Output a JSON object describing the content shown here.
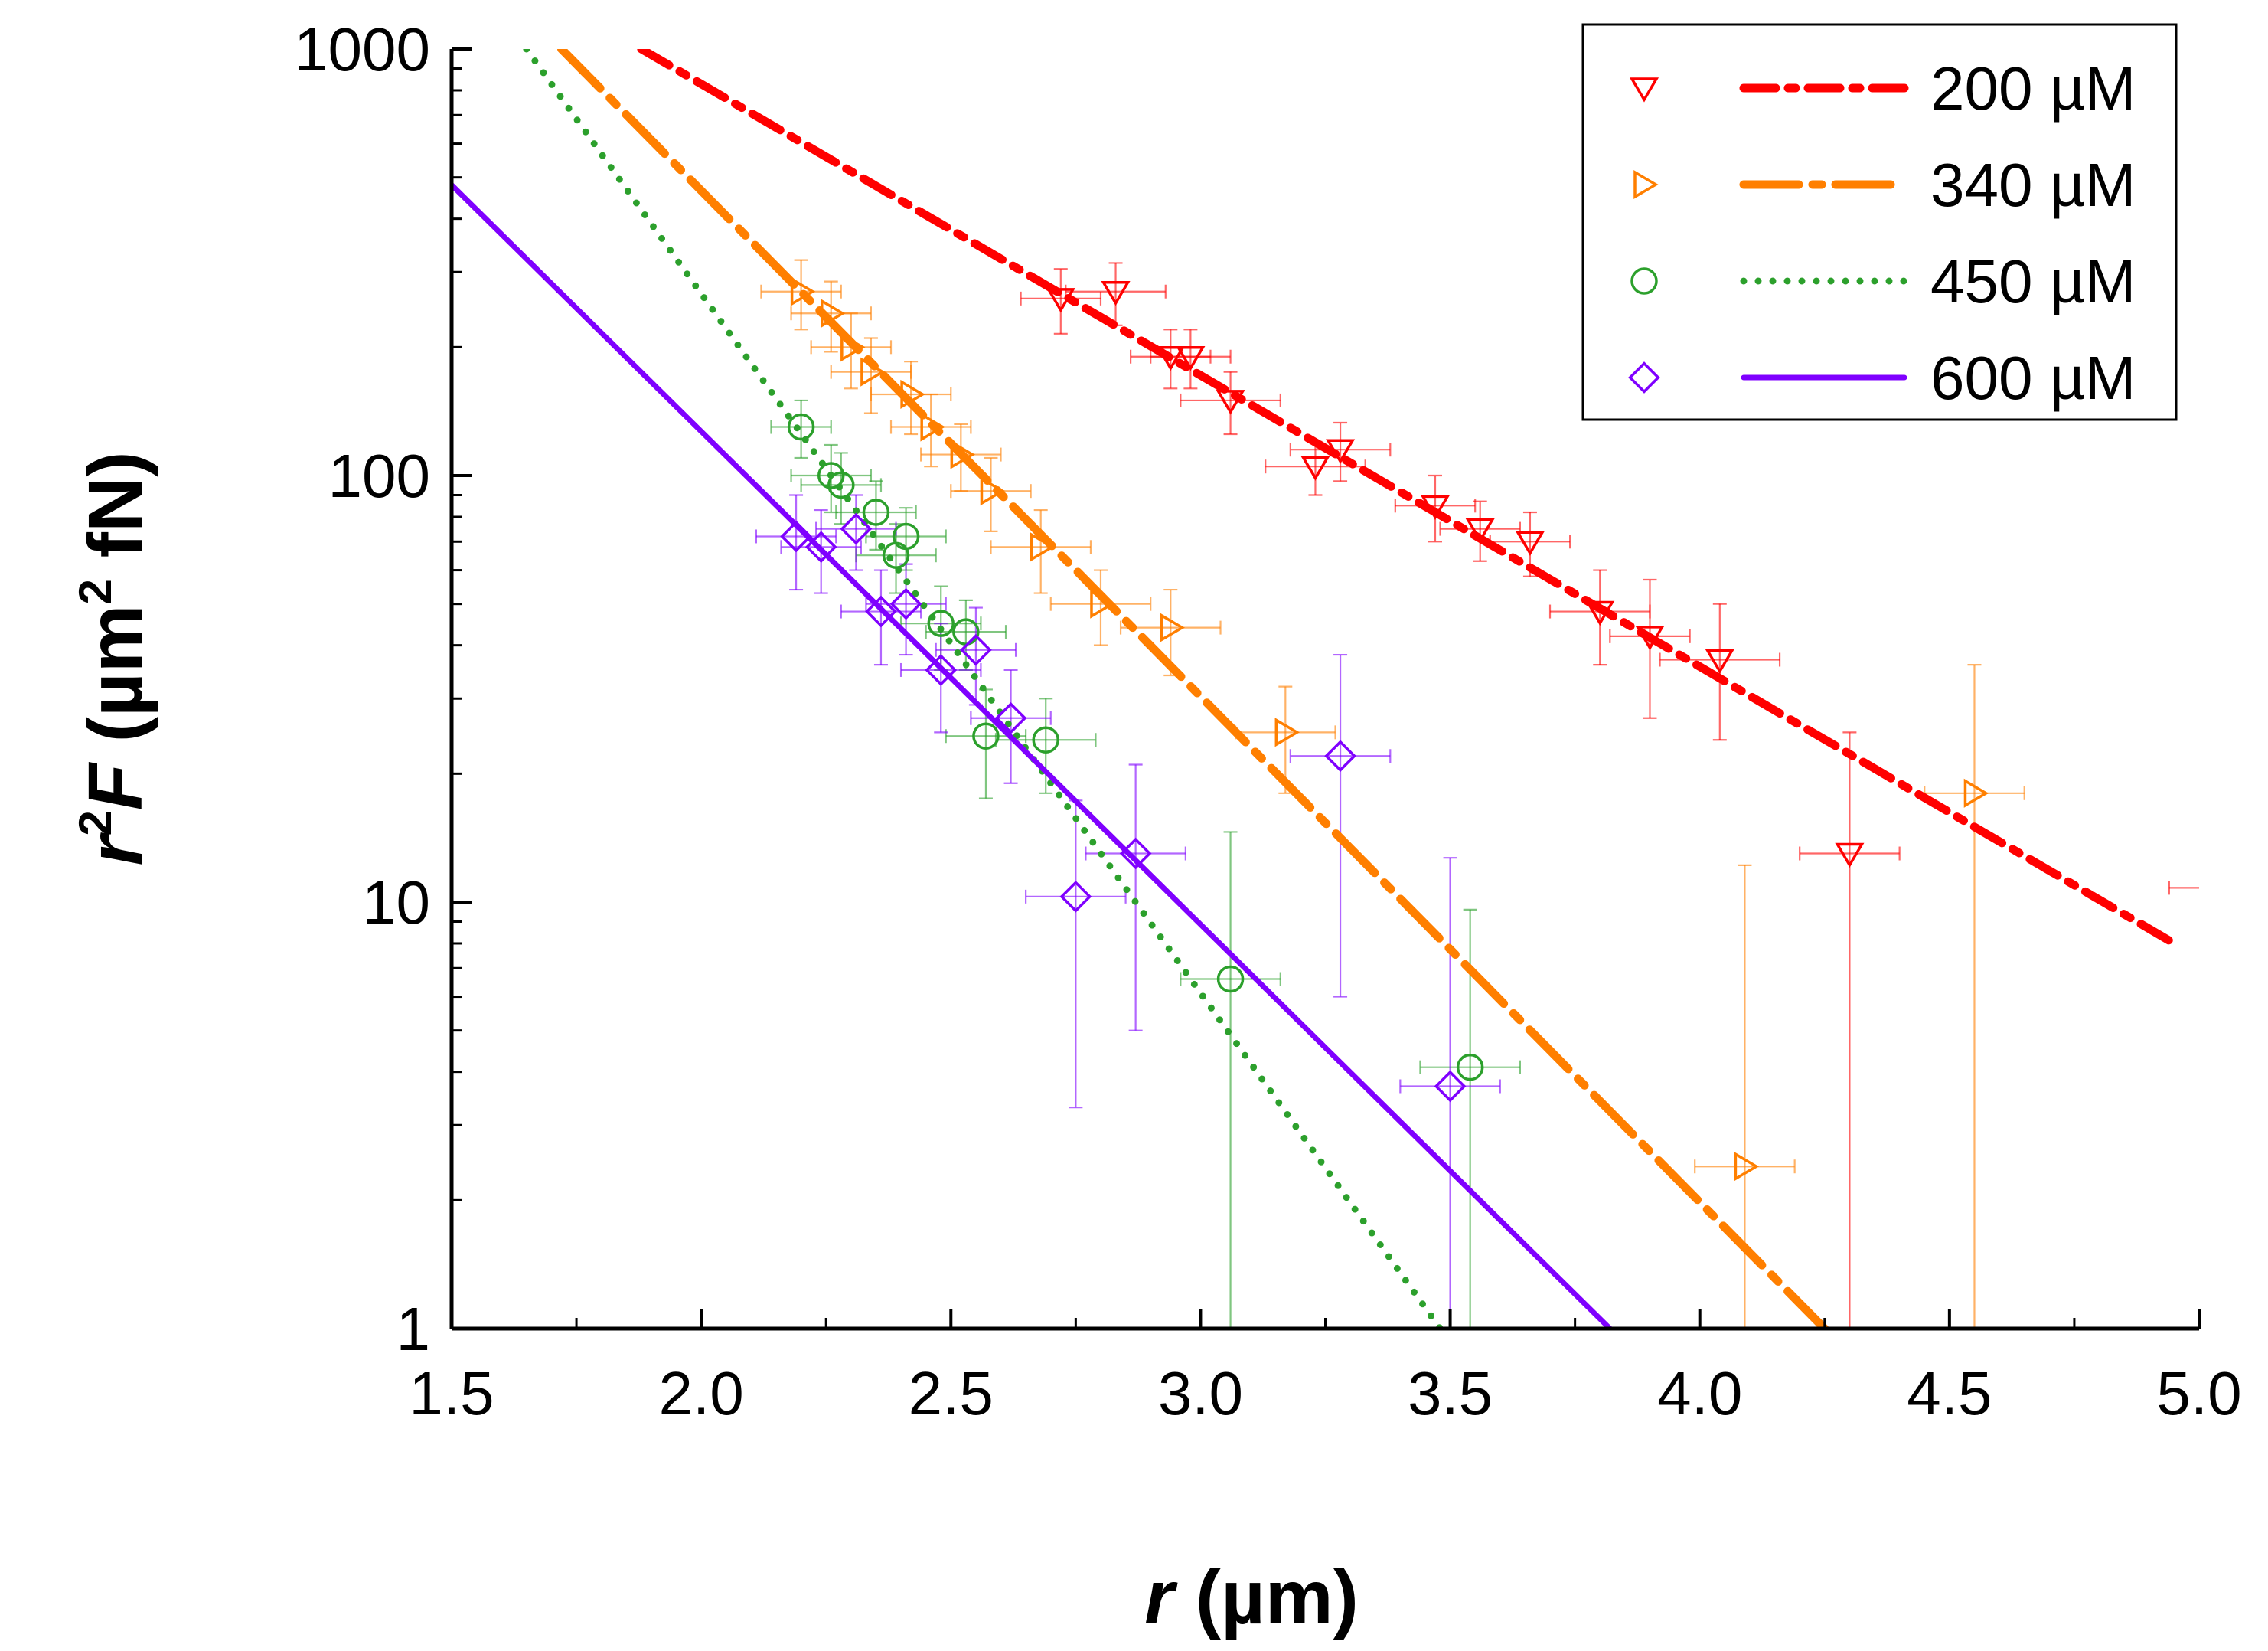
{
  "chart_data": {
    "type": "scatter",
    "x_scale": "linear",
    "y_scale": "log",
    "xlim": [
      1.5,
      5.0
    ],
    "ylim": [
      1,
      1000
    ],
    "x_ticks": [
      "1.5",
      "2.0",
      "2.5",
      "3.0",
      "3.5",
      "4.0",
      "4.5",
      "5.0"
    ],
    "y_ticks": [
      "1",
      "10",
      "100",
      "1000"
    ],
    "xlabel": {
      "var": "r",
      "unit": " (µm)"
    },
    "ylabel": {
      "sup1": "2",
      "r": "r",
      "F": "F",
      "unit": " (µm",
      "sup2": "2",
      "unit_end": " fN)"
    },
    "legend_position": "top-right",
    "series": [
      {
        "name": "200 µM",
        "color": "#ff0000",
        "marker": "triangle-down",
        "line_style": "dash-dot",
        "fit": {
          "x": [
            1.88,
            4.95
          ],
          "y": [
            1000,
            8.0
          ]
        },
        "points": [
          {
            "x": 2.72,
            "y": 260,
            "ex": 0.08,
            "ey": 45
          },
          {
            "x": 2.83,
            "y": 270,
            "ex": 0.1,
            "ey": 45
          },
          {
            "x": 2.94,
            "y": 190,
            "ex": 0.08,
            "ey": 30
          },
          {
            "x": 2.98,
            "y": 190,
            "ex": 0.08,
            "ey": 30
          },
          {
            "x": 3.06,
            "y": 150,
            "ex": 0.1,
            "ey": 25
          },
          {
            "x": 3.23,
            "y": 105,
            "ex": 0.1,
            "ey": 15
          },
          {
            "x": 3.28,
            "y": 115,
            "ex": 0.1,
            "ey": 18
          },
          {
            "x": 3.47,
            "y": 85,
            "ex": 0.08,
            "ey": 15
          },
          {
            "x": 3.56,
            "y": 75,
            "ex": 0.08,
            "ey": 12
          },
          {
            "x": 3.66,
            "y": 70,
            "ex": 0.08,
            "ey": 12
          },
          {
            "x": 3.8,
            "y": 48,
            "ex": 0.1,
            "ey": 12
          },
          {
            "x": 3.9,
            "y": 42,
            "ex": 0.08,
            "ey": 15
          },
          {
            "x": 4.04,
            "y": 37,
            "ex": 0.12,
            "ey": 13
          },
          {
            "x": 4.3,
            "y": 13,
            "ex": 0.1,
            "ey": 12
          },
          {
            "x": 5.0,
            "y": 10.8,
            "ex": 0.06,
            "ey": 0
          }
        ]
      },
      {
        "name": "340 µM",
        "color": "#ff7f00",
        "marker": "triangle-right",
        "line_style": "dash-dot-long",
        "fit": {
          "x": [
            1.72,
            4.25
          ],
          "y": [
            1000,
            1.0
          ]
        },
        "points": [
          {
            "x": 2.2,
            "y": 270,
            "ex": 0.08,
            "ey": 50
          },
          {
            "x": 2.26,
            "y": 240,
            "ex": 0.08,
            "ey": 45
          },
          {
            "x": 2.3,
            "y": 200,
            "ex": 0.08,
            "ey": 40
          },
          {
            "x": 2.34,
            "y": 175,
            "ex": 0.08,
            "ey": 35
          },
          {
            "x": 2.42,
            "y": 155,
            "ex": 0.08,
            "ey": 30
          },
          {
            "x": 2.46,
            "y": 130,
            "ex": 0.08,
            "ey": 25
          },
          {
            "x": 2.52,
            "y": 112,
            "ex": 0.08,
            "ey": 20
          },
          {
            "x": 2.58,
            "y": 92,
            "ex": 0.08,
            "ey": 18
          },
          {
            "x": 2.68,
            "y": 68,
            "ex": 0.1,
            "ey": 15
          },
          {
            "x": 2.8,
            "y": 50,
            "ex": 0.1,
            "ey": 10
          },
          {
            "x": 2.94,
            "y": 44,
            "ex": 0.1,
            "ey": 10
          },
          {
            "x": 3.17,
            "y": 25,
            "ex": 0.1,
            "ey": 7
          },
          {
            "x": 4.09,
            "y": 2.4,
            "ex": 0.1,
            "ey": 9.8
          },
          {
            "x": 4.55,
            "y": 18,
            "ex": 0.1,
            "ey": 18
          }
        ]
      },
      {
        "name": "450 µM",
        "color": "#2ca02c",
        "marker": "circle",
        "line_style": "dotted",
        "fit": {
          "x": [
            1.65,
            3.48
          ],
          "y": [
            1000,
            1.0
          ]
        },
        "points": [
          {
            "x": 2.2,
            "y": 130,
            "ex": 0.06,
            "ey": 20
          },
          {
            "x": 2.26,
            "y": 100,
            "ex": 0.08,
            "ey": 18
          },
          {
            "x": 2.28,
            "y": 95,
            "ex": 0.08,
            "ey": 18
          },
          {
            "x": 2.35,
            "y": 82,
            "ex": 0.08,
            "ey": 15
          },
          {
            "x": 2.39,
            "y": 65,
            "ex": 0.08,
            "ey": 12
          },
          {
            "x": 2.41,
            "y": 72,
            "ex": 0.08,
            "ey": 12
          },
          {
            "x": 2.48,
            "y": 45,
            "ex": 0.08,
            "ey": 10
          },
          {
            "x": 2.53,
            "y": 43,
            "ex": 0.08,
            "ey": 8
          },
          {
            "x": 2.57,
            "y": 24.5,
            "ex": 0.08,
            "ey": 7
          },
          {
            "x": 2.69,
            "y": 24,
            "ex": 0.1,
            "ey": 6
          },
          {
            "x": 3.06,
            "y": 6.6,
            "ex": 0.1,
            "ey": 8
          },
          {
            "x": 3.54,
            "y": 4.1,
            "ex": 0.1,
            "ey": 5.5
          }
        ]
      },
      {
        "name": "600 µM",
        "color": "#7f00ff",
        "marker": "diamond",
        "line_style": "solid",
        "fit": {
          "x": [
            1.5,
            3.82
          ],
          "y": [
            480,
            1.0
          ]
        },
        "points": [
          {
            "x": 2.19,
            "y": 72,
            "ex": 0.08,
            "ey": 18
          },
          {
            "x": 2.24,
            "y": 68,
            "ex": 0.08,
            "ey": 15
          },
          {
            "x": 2.31,
            "y": 75,
            "ex": 0.08,
            "ey": 15
          },
          {
            "x": 2.36,
            "y": 48,
            "ex": 0.08,
            "ey": 12
          },
          {
            "x": 2.41,
            "y": 50,
            "ex": 0.08,
            "ey": 12
          },
          {
            "x": 2.48,
            "y": 35,
            "ex": 0.08,
            "ey": 10
          },
          {
            "x": 2.55,
            "y": 39,
            "ex": 0.08,
            "ey": 10
          },
          {
            "x": 2.62,
            "y": 27,
            "ex": 0.08,
            "ey": 8
          },
          {
            "x": 2.75,
            "y": 10.3,
            "ex": 0.1,
            "ey": 7
          },
          {
            "x": 2.87,
            "y": 13,
            "ex": 0.1,
            "ey": 8
          },
          {
            "x": 3.28,
            "y": 22,
            "ex": 0.1,
            "ey": 16
          },
          {
            "x": 3.5,
            "y": 3.7,
            "ex": 0.1,
            "ey": 9
          }
        ]
      }
    ]
  }
}
